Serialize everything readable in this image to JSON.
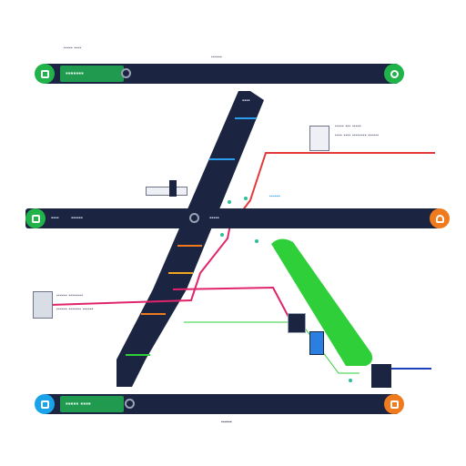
{
  "colors": {
    "navy": "#1b2440",
    "green": "#2fcf3a",
    "red": "#e23a3a",
    "pink": "#e0246b",
    "blue": "#1e3fbf",
    "orange": "#f07a1e"
  },
  "top": {
    "header_small": "▪▪▪▪▪ ▪▪▪▪",
    "badge": "▪▪▪▪▪▪▪",
    "center_label": "▪▪▪▪▪▪"
  },
  "middle": {
    "left_label_a": "▪▪▪▪",
    "left_label_b": "▪▪▪▪▪▪",
    "center_label": "▪▪▪▪▪"
  },
  "bottom": {
    "badge": "▪▪▪▪▪ ▪▪▪▪",
    "footer_label": "▪▪▪▪▪▪"
  },
  "annotations": {
    "upper_right_line1": "▪▪▪▪▪ ▪▪▪ ▪▪▪▪▪",
    "upper_right_line2": "▪▪▪▪ ▪▪▪▪ ▪▪▪▪▪▪▪▪ ▪▪▪▪▪▪",
    "diagonal_tag": "▪▪▪▪",
    "mid_right_tag": "▪▪▪▪▪▪",
    "left_lower_line1": "▪▪▪▪▪▪ ▪▪▪▪▪▪▪▪",
    "left_lower_line2": "▪▪▪▪▪▪ ▪▪▪▪▪▪▪ ▪▪▪▪▪▪"
  },
  "icons": {
    "top_left": "square-icon",
    "top_right": "leaf-icon",
    "mid_left": "square-icon",
    "mid_right": "flame-icon",
    "bottom_left": "monitor-icon",
    "bottom_right": "grid-icon"
  }
}
